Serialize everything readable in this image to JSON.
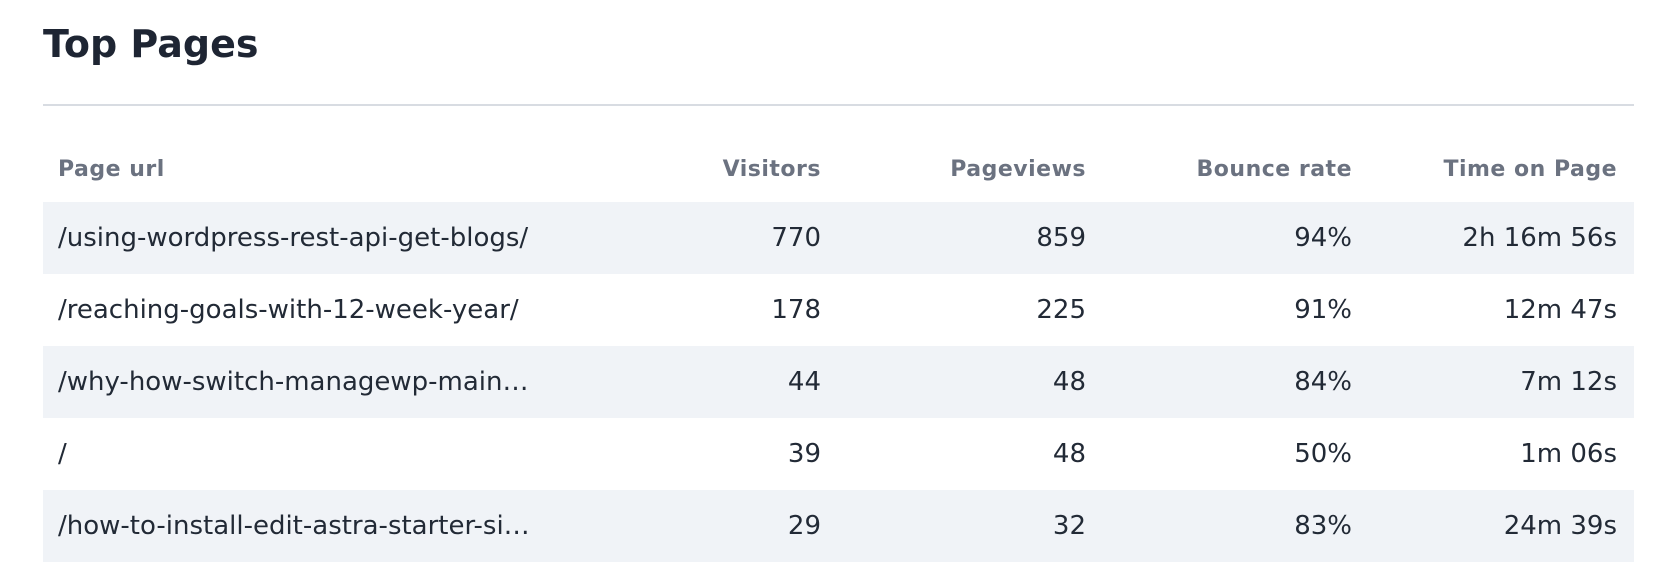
{
  "header": {
    "title": "Top Pages"
  },
  "table": {
    "columns": [
      "Page url",
      "Visitors",
      "Pageviews",
      "Bounce rate",
      "Time on Page"
    ],
    "rows": [
      [
        "/using-wordpress-rest-api-get-blogs/",
        "770",
        "859",
        "94%",
        "2h 16m 56s"
      ],
      [
        "/reaching-goals-with-12-week-year/",
        "178",
        "225",
        "91%",
        "12m 47s"
      ],
      [
        "/why-how-switch-managewp-main…",
        "44",
        "48",
        "84%",
        "7m 12s"
      ],
      [
        "/",
        "39",
        "48",
        "50%",
        "1m 06s"
      ],
      [
        "/how-to-install-edit-astra-starter-si…",
        "29",
        "32",
        "83%",
        "24m 39s"
      ]
    ]
  }
}
